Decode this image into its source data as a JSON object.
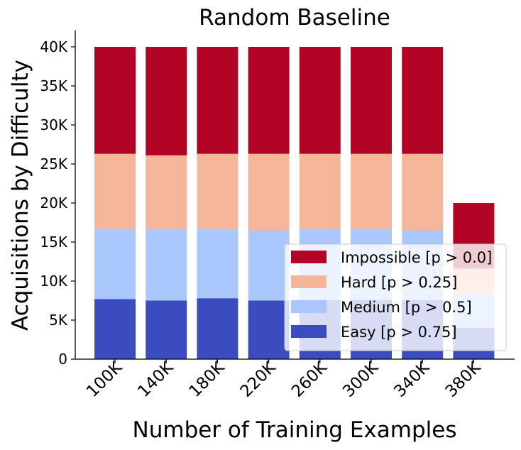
{
  "chart_data": {
    "type": "bar",
    "stacked": true,
    "title": "Random Baseline",
    "xlabel": "Number of Training Examples",
    "ylabel": "Acquisitions by Difficulty",
    "categories": [
      "100K",
      "140K",
      "180K",
      "220K",
      "260K",
      "300K",
      "340K",
      "380K"
    ],
    "ylim": [
      0,
      42000
    ],
    "yticks": [
      0,
      5000,
      10000,
      15000,
      20000,
      25000,
      30000,
      35000,
      40000
    ],
    "ytick_labels": [
      "0",
      "5K",
      "10K",
      "15K",
      "20K",
      "25K",
      "30K",
      "35K",
      "40K"
    ],
    "grid": false,
    "legend_position": "lower-right",
    "series": [
      {
        "name": "Easy [p > 0.75]",
        "color": "#3b4cc0",
        "values": [
          7700,
          7500,
          7800,
          7500,
          7600,
          7600,
          7600,
          4000
        ]
      },
      {
        "name": "Medium [p > 0.5]",
        "color": "#aac7fd",
        "values": [
          9000,
          9200,
          8900,
          9000,
          9100,
          9100,
          8900,
          4400
        ]
      },
      {
        "name": "Hard [p > 0.25]",
        "color": "#f5b69a",
        "values": [
          9600,
          9400,
          9600,
          9800,
          9600,
          9600,
          9800,
          3200
        ]
      },
      {
        "name": "Impossible [p > 0.0]",
        "color": "#b40426",
        "values": [
          13700,
          13900,
          13700,
          13700,
          13700,
          13700,
          13700,
          8400
        ]
      }
    ],
    "legend_order": [
      "Impossible [p > 0.0]",
      "Hard [p > 0.25]",
      "Medium [p > 0.5]",
      "Easy [p > 0.75]"
    ]
  }
}
